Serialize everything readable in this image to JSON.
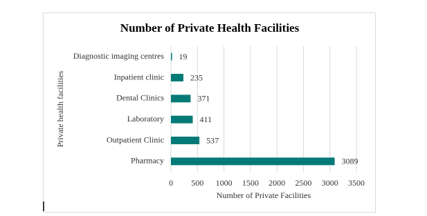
{
  "chart_data": {
    "type": "bar",
    "orientation": "horizontal",
    "title": "Number of Private Health Facilities",
    "x_label": "Number of Private Facilities",
    "y_label": "Private health facilities",
    "categories": [
      "Diagnostic imaging centres",
      "Inpatient clinic",
      "Dental Clinics",
      "Laboratory",
      "Outpatient Clinic",
      "Pharmacy"
    ],
    "values": [
      19,
      235,
      371,
      411,
      537,
      3089
    ],
    "color": "#047a77",
    "xlim": [
      0,
      3500
    ],
    "xticks": [
      0,
      500,
      1000,
      1500,
      2000,
      2500,
      3000,
      3500
    ],
    "grid": true
  }
}
